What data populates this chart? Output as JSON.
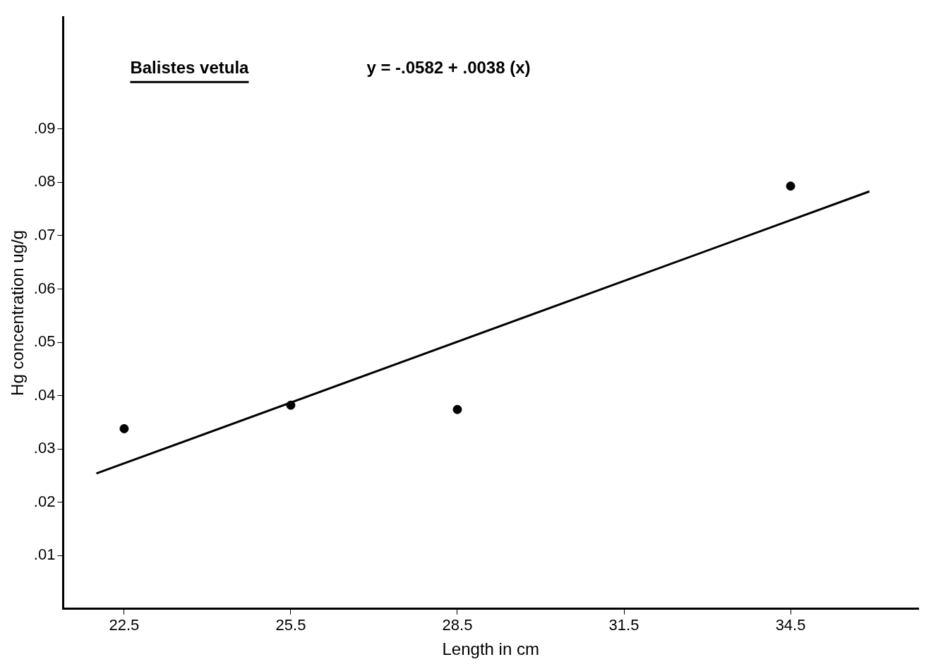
{
  "chart_data": {
    "type": "scatter",
    "title": "Balistes vetula",
    "xlabel": "Length in cm",
    "ylabel": "Hg concentration ug/g",
    "annotations": [
      "y = -.0582 + .0038 (x)"
    ],
    "series": [
      {
        "type": "scatter",
        "color": "#000000",
        "marker": "circle",
        "x": [
          22.5,
          25.5,
          28.5,
          34.5
        ],
        "values": [
          0.0338,
          0.0382,
          0.0374,
          0.0793
        ]
      },
      {
        "type": "line",
        "color": "#000000",
        "marker": "none",
        "line_style": "solid",
        "x": [
          22,
          35.92
        ],
        "values": [
          0.0254,
          0.0783
        ]
      }
    ],
    "xlim": [
      21.4,
      36.8
    ],
    "xticks": [
      22.5,
      25.5,
      28.5,
      31.5,
      34.5
    ],
    "ylim": [
      0,
      0.111
    ],
    "yticks": [
      {
        "value": 0.01,
        "label": ".01"
      },
      {
        "value": 0.02,
        "label": ".02"
      },
      {
        "value": 0.03,
        "label": ".03"
      },
      {
        "value": 0.04,
        "label": ".04"
      },
      {
        "value": 0.05,
        "label": ".05"
      },
      {
        "value": 0.06,
        "label": ".06"
      },
      {
        "value": 0.07,
        "label": ".07"
      },
      {
        "value": 0.08,
        "label": ".08"
      },
      {
        "value": 0.09,
        "label": ".09"
      }
    ],
    "grid": false,
    "legend": false
  }
}
